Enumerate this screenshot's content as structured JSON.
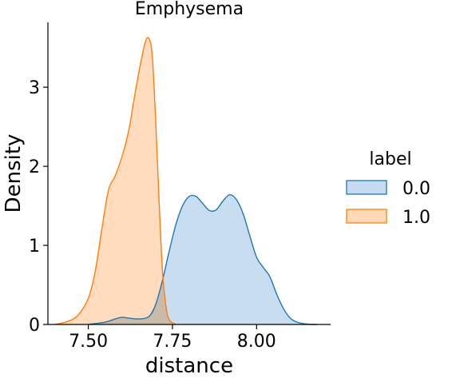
{
  "chart_data": {
    "type": "area",
    "subtype": "kde",
    "title": "Emphysema",
    "xlabel": "distance",
    "ylabel": "Density",
    "xlim": [
      7.38,
      8.22
    ],
    "ylim": [
      0,
      3.82
    ],
    "xticks": [
      7.5,
      7.75,
      8.0
    ],
    "xtick_labels": [
      "7.50",
      "7.75",
      "8.00"
    ],
    "yticks": [
      0,
      1,
      2,
      3
    ],
    "ytick_labels": [
      "0",
      "1",
      "2",
      "3"
    ],
    "grid": false,
    "legend": {
      "title": "label",
      "position": "right"
    },
    "series": [
      {
        "name": "0.0",
        "color": "#1f77b4",
        "fill": "#c6dbef",
        "x": [
          7.5,
          7.55,
          7.58,
          7.6,
          7.62,
          7.65,
          7.68,
          7.7,
          7.72,
          7.74,
          7.76,
          7.78,
          7.8,
          7.82,
          7.84,
          7.86,
          7.88,
          7.9,
          7.92,
          7.94,
          7.96,
          7.98,
          8.0,
          8.02,
          8.04,
          8.06,
          8.08,
          8.1,
          8.12,
          8.14,
          8.16,
          8.18
        ],
        "y": [
          0.0,
          0.03,
          0.07,
          0.09,
          0.08,
          0.07,
          0.1,
          0.25,
          0.55,
          0.92,
          1.26,
          1.5,
          1.62,
          1.62,
          1.53,
          1.44,
          1.45,
          1.56,
          1.64,
          1.58,
          1.4,
          1.12,
          0.85,
          0.72,
          0.6,
          0.38,
          0.2,
          0.08,
          0.03,
          0.01,
          0.0,
          0.0
        ]
      },
      {
        "name": "1.0",
        "color": "#ff7f0e",
        "fill": "#ffdab9",
        "x": [
          7.4,
          7.44,
          7.47,
          7.5,
          7.52,
          7.54,
          7.56,
          7.58,
          7.6,
          7.62,
          7.64,
          7.66,
          7.67,
          7.68,
          7.69,
          7.7,
          7.71,
          7.72,
          7.73,
          7.74,
          7.76
        ],
        "y": [
          0.0,
          0.04,
          0.12,
          0.33,
          0.66,
          1.2,
          1.7,
          1.88,
          2.12,
          2.45,
          2.95,
          3.4,
          3.58,
          3.62,
          3.4,
          2.6,
          1.6,
          0.7,
          0.25,
          0.06,
          0.0
        ]
      }
    ]
  }
}
